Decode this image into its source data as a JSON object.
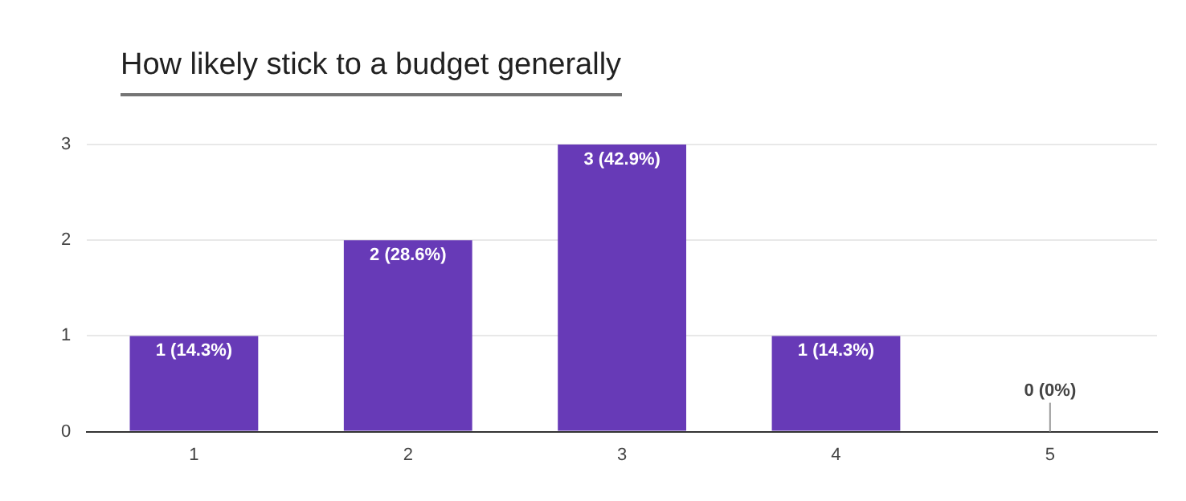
{
  "chart_data": {
    "type": "bar",
    "title": "How likely stick to a budget generally",
    "categories": [
      "1",
      "2",
      "3",
      "4",
      "5"
    ],
    "values": [
      1,
      2,
      3,
      1,
      0
    ],
    "color": "#673ab7",
    "value_labels": [
      "1 (14.3%)",
      "2 (28.6%)",
      "3 (42.9%)",
      "1 (14.3%)",
      "0 (0%)"
    ],
    "ylim": [
      0,
      3
    ],
    "yticks": [
      0,
      1,
      2,
      3
    ],
    "grid": "y",
    "legend": false
  }
}
